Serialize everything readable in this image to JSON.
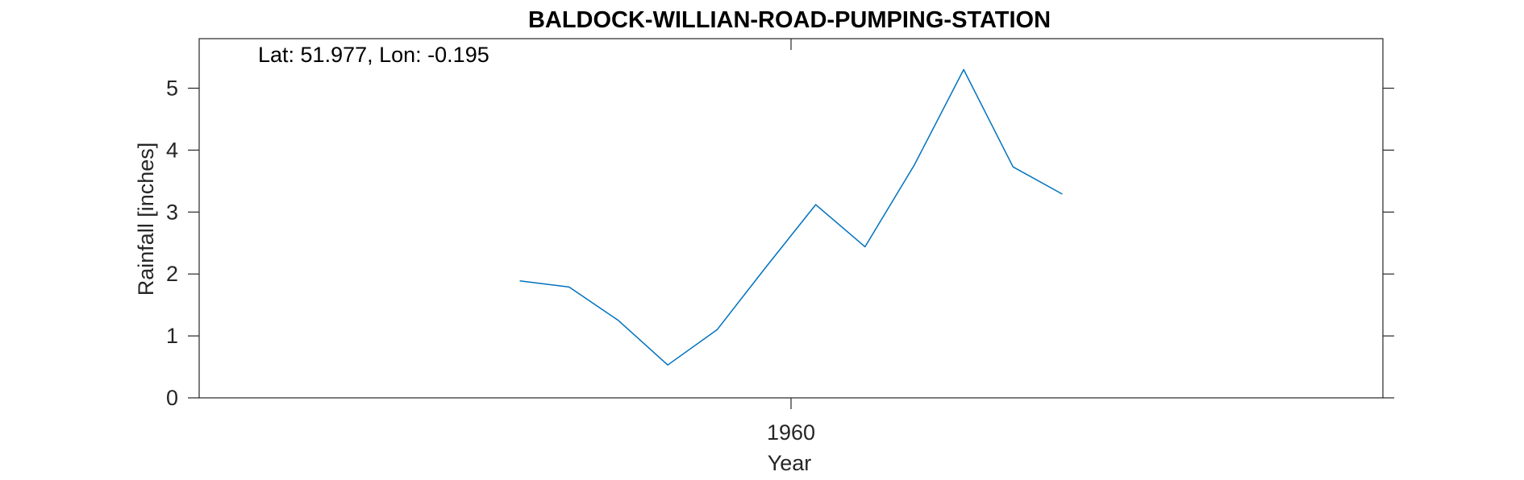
{
  "chart_data": {
    "type": "line",
    "title": "BALDOCK-WILLIAN-ROAD-PUMPING-STATION",
    "annotation": "Lat: 51.977, Lon: -0.195",
    "xlabel": "Year",
    "ylabel": "Rainfall [inches]",
    "xlim": [
      1948,
      1972
    ],
    "ylim": [
      0,
      5.8
    ],
    "x_ticks": [
      1960
    ],
    "x_tick_labels": [
      "1960"
    ],
    "y_ticks": [
      0,
      1,
      2,
      3,
      4,
      5
    ],
    "y_tick_labels": [
      "0",
      "1",
      "2",
      "3",
      "4",
      "5"
    ],
    "grid": false,
    "colors": {
      "series": "#0072BD",
      "axes": "#262626"
    },
    "series": [
      {
        "x": [
          1954.5,
          1955.5,
          1956.5,
          1957.5,
          1958.5,
          1959.5,
          1960.5,
          1961.5,
          1962.5,
          1963.5,
          1964.5,
          1965.5
        ],
        "values": [
          1.89,
          1.79,
          1.25,
          0.53,
          1.1,
          2.12,
          3.12,
          2.44,
          3.76,
          5.3,
          3.73,
          3.29
        ]
      }
    ]
  }
}
